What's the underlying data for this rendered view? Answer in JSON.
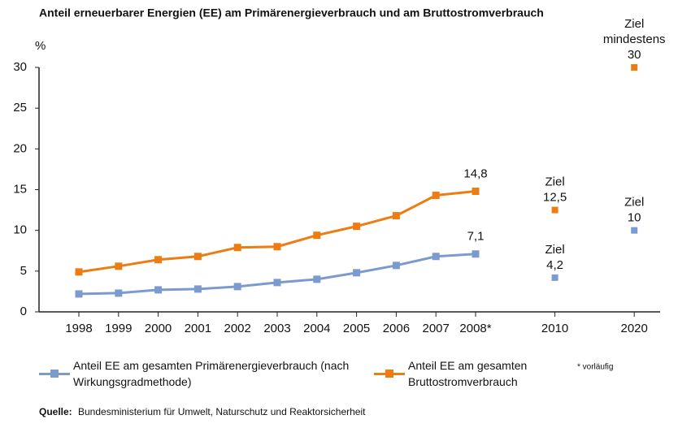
{
  "chart_data": {
    "type": "line",
    "title": "Anteil erneuerbarer Energien (EE) am Primärenergieverbrauch und am Bruttostromverbrauch",
    "y_unit": "%",
    "categories": [
      "1998",
      "1999",
      "2000",
      "2001",
      "2002",
      "2003",
      "2004",
      "2005",
      "2006",
      "2007",
      "2008*",
      "2010",
      "2020"
    ],
    "ylim": [
      0,
      30
    ],
    "yticks": [
      0,
      5,
      10,
      15,
      20,
      25,
      30
    ],
    "series": [
      {
        "name": "Anteil EE am gesamten Primärenergieverbrauch (nach Wirkungsgradmethode)",
        "color": "#7b9bcf",
        "values": [
          2.2,
          2.3,
          2.7,
          2.8,
          3.1,
          3.6,
          4.0,
          4.8,
          5.7,
          6.8,
          7.1,
          null,
          null
        ],
        "value_labels": [
          null,
          null,
          null,
          null,
          null,
          null,
          null,
          null,
          null,
          null,
          "7,1",
          null,
          null
        ],
        "target_values": [
          null,
          null,
          null,
          null,
          null,
          null,
          null,
          null,
          null,
          null,
          null,
          4.2,
          10
        ],
        "target_value_labels": [
          null,
          null,
          null,
          null,
          null,
          null,
          null,
          null,
          null,
          null,
          null,
          "4,2",
          "10"
        ],
        "target_captions": [
          null,
          null,
          null,
          null,
          null,
          null,
          null,
          null,
          null,
          null,
          null,
          [
            "Ziel"
          ],
          [
            "Ziel"
          ]
        ]
      },
      {
        "name": "Anteil EE am gesamten Bruttostromverbrauch",
        "color": "#ed7d12",
        "values": [
          4.9,
          5.6,
          6.4,
          6.8,
          7.9,
          8.0,
          9.4,
          10.5,
          11.8,
          14.3,
          14.8,
          null,
          null
        ],
        "value_labels": [
          null,
          null,
          null,
          null,
          null,
          null,
          null,
          null,
          null,
          null,
          "14,8",
          null,
          null
        ],
        "target_values": [
          null,
          null,
          null,
          null,
          null,
          null,
          null,
          null,
          null,
          null,
          null,
          12.5,
          30
        ],
        "target_value_labels": [
          null,
          null,
          null,
          null,
          null,
          null,
          null,
          null,
          null,
          null,
          null,
          "12,5",
          "30"
        ],
        "target_captions": [
          null,
          null,
          null,
          null,
          null,
          null,
          null,
          null,
          null,
          null,
          null,
          [
            "Ziel"
          ],
          [
            "Ziel",
            "mindestens"
          ]
        ]
      }
    ],
    "footnote": "* vorläufig",
    "source_label": "Quelle:",
    "source": "Bundesministerium für Umwelt, Naturschutz und Reaktorsicherheit"
  }
}
